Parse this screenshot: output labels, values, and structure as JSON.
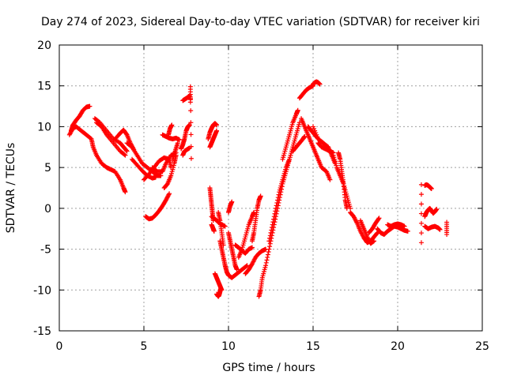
{
  "chart_data": {
    "type": "scatter",
    "title": "Day 274 of 2023, Sidereal Day-to-day VTEC variation (SDTVAR) for receiver kiri",
    "xlabel": "GPS time / hours",
    "ylabel": "SDTVAR / TECUs",
    "xlim": [
      0,
      25
    ],
    "ylim": [
      -15,
      20
    ],
    "xticks": [
      0,
      5,
      10,
      15,
      20,
      25
    ],
    "yticks": [
      -15,
      -10,
      -5,
      0,
      5,
      10,
      15,
      20
    ],
    "grid": true,
    "marker": "+",
    "series": [
      {
        "name": "SDTVAR",
        "color": "#ff0000",
        "tracks": [
          {
            "x": [
              0.7,
              0.8,
              1.0,
              1.2,
              1.4,
              1.6,
              1.8
            ],
            "y": [
              9.5,
              10.2,
              10.8,
              11.3,
              12.0,
              12.4,
              12.5
            ]
          },
          {
            "x": [
              0.6,
              0.8,
              1.0,
              1.3,
              1.6,
              1.9,
              2.0,
              2.2,
              2.5,
              2.8,
              3.0,
              3.3,
              3.6,
              3.8,
              3.9
            ],
            "y": [
              9.0,
              9.8,
              10.0,
              9.5,
              9.0,
              8.5,
              7.5,
              6.5,
              5.5,
              5.0,
              4.8,
              4.5,
              3.5,
              2.5,
              2.0
            ]
          },
          {
            "x": [
              2.1,
              2.4,
              2.8,
              3.2,
              3.6,
              3.8,
              4.0
            ],
            "y": [
              11.0,
              10.5,
              9.5,
              8.5,
              8.0,
              7.5,
              7.0
            ]
          },
          {
            "x": [
              2.2,
              2.5,
              2.8,
              3.2,
              3.6,
              3.9
            ],
            "y": [
              10.5,
              10.0,
              9.0,
              8.0,
              7.0,
              6.5
            ]
          },
          {
            "x": [
              3.3,
              3.6,
              3.8,
              4.0,
              4.2,
              4.4
            ],
            "y": [
              8.5,
              9.2,
              9.6,
              9.0,
              8.0,
              7.2
            ]
          },
          {
            "x": [
              4.0,
              4.3,
              4.6,
              4.9,
              5.2,
              5.5,
              5.8,
              6.0
            ],
            "y": [
              8.0,
              7.5,
              6.5,
              5.5,
              5.0,
              4.5,
              4.0,
              4.0
            ]
          },
          {
            "x": [
              4.3,
              4.6,
              4.9,
              5.2,
              5.5,
              5.7
            ],
            "y": [
              6.0,
              5.3,
              4.6,
              4.0,
              3.7,
              3.8
            ]
          },
          {
            "x": [
              5.0,
              5.3,
              5.6,
              5.9,
              6.2,
              6.5,
              6.6
            ],
            "y": [
              3.5,
              4.2,
              5.0,
              5.8,
              6.2,
              6.0,
              5.0
            ]
          },
          {
            "x": [
              5.5,
              5.8,
              6.1,
              6.3,
              6.6,
              6.9
            ],
            "y": [
              5.0,
              4.5,
              4.5,
              5.5,
              6.5,
              6.8
            ]
          },
          {
            "x": [
              6.2,
              6.4,
              6.6,
              6.8,
              6.9
            ],
            "y": [
              2.5,
              3.0,
              4.0,
              5.5,
              6.5
            ]
          },
          {
            "x": [
              6.7,
              6.85,
              7.0
            ],
            "y": [
              6.0,
              7.0,
              8.0
            ]
          },
          {
            "x": [
              5.1,
              5.3,
              5.5,
              5.7,
              5.9,
              6.1,
              6.3,
              6.5
            ],
            "y": [
              -1.0,
              -1.3,
              -1.2,
              -0.8,
              -0.3,
              0.3,
              1.0,
              1.8
            ]
          },
          {
            "x": [
              6.1,
              6.3,
              6.5,
              6.7,
              6.9,
              7.1
            ],
            "y": [
              9.0,
              8.8,
              8.6,
              8.5,
              8.6,
              8.4
            ]
          },
          {
            "x": [
              6.45,
              6.55,
              6.65
            ],
            "y": [
              9.0,
              9.8,
              10.2
            ]
          },
          {
            "x": [
              7.2,
              7.3,
              7.4,
              7.5,
              7.6,
              7.7
            ],
            "y": [
              7.3,
              7.8,
              8.5,
              9.5,
              10.0,
              10.2
            ]
          },
          {
            "x": [
              7.3,
              7.4,
              7.55,
              7.7
            ],
            "y": [
              6.5,
              7.0,
              7.2,
              7.4
            ]
          },
          {
            "x": [
              7.3,
              7.45,
              7.6,
              7.7
            ],
            "y": [
              13.2,
              13.4,
              13.6,
              13.8
            ]
          },
          {
            "x": [
              7.75,
              7.75,
              7.8
            ],
            "y": [
              13.0,
              14.9,
              6.1
            ]
          },
          {
            "x": [
              8.8,
              8.9,
              9.0,
              9.1,
              9.2,
              9.3
            ],
            "y": [
              8.5,
              9.3,
              9.8,
              10.2,
              10.4,
              10.2
            ]
          },
          {
            "x": [
              8.9,
              9.0,
              9.1,
              9.2,
              9.3
            ],
            "y": [
              7.5,
              8.0,
              8.5,
              9.0,
              9.5
            ]
          },
          {
            "x": [
              8.9,
              8.95,
              9.0,
              9.05,
              9.1
            ],
            "y": [
              2.5,
              1.5,
              0.5,
              -0.5,
              -1.5
            ]
          },
          {
            "x": [
              9.0,
              9.1,
              9.15
            ],
            "y": [
              -2.0,
              -2.5,
              -2.8
            ]
          },
          {
            "x": [
              9.0,
              9.2,
              9.4,
              9.6,
              9.8
            ],
            "y": [
              -1.0,
              -1.3,
              -1.7,
              -2.0,
              -2.2
            ]
          },
          {
            "x": [
              9.2,
              9.3,
              9.4,
              9.5,
              9.6
            ],
            "y": [
              -8.0,
              -8.5,
              -9.0,
              -9.5,
              -10.0
            ]
          },
          {
            "x": [
              9.3,
              9.4,
              9.45,
              9.5,
              9.55
            ],
            "y": [
              -10.5,
              -10.8,
              -10.6,
              -10.2,
              -9.8
            ]
          },
          {
            "x": [
              9.5,
              9.6,
              9.7,
              9.8,
              9.9,
              10.0,
              10.2,
              10.5,
              10.8,
              11.1
            ],
            "y": [
              -4.0,
              -5.0,
              -6.0,
              -7.0,
              -7.8,
              -8.2,
              -8.5,
              -8.0,
              -7.5,
              -7.0
            ]
          },
          {
            "x": [
              9.4,
              9.5,
              9.6,
              9.7
            ],
            "y": [
              -0.5,
              -1.5,
              -3.0,
              -4.5
            ]
          },
          {
            "x": [
              10.0,
              10.1,
              10.2,
              10.3,
              10.4,
              10.5
            ],
            "y": [
              -3.0,
              -4.0,
              -5.0,
              -6.0,
              -7.0,
              -7.5
            ]
          },
          {
            "x": [
              10.0,
              10.1,
              10.2
            ],
            "y": [
              -0.5,
              0.3,
              0.8
            ]
          },
          {
            "x": [
              10.4,
              10.6,
              10.8,
              11.0,
              11.2,
              11.4
            ],
            "y": [
              -4.5,
              -4.8,
              -5.2,
              -5.5,
              -5.0,
              -4.8
            ]
          },
          {
            "x": [
              10.6,
              10.8,
              11.0,
              11.2,
              11.4,
              11.5
            ],
            "y": [
              -6.0,
              -5.0,
              -3.5,
              -2.0,
              -1.0,
              -0.5
            ]
          },
          {
            "x": [
              11.0,
              11.2,
              11.4,
              11.6,
              11.8,
              12.0,
              12.2
            ],
            "y": [
              -8.0,
              -7.5,
              -6.8,
              -6.0,
              -5.5,
              -5.2,
              -5.0
            ]
          },
          {
            "x": [
              11.4,
              11.5,
              11.6,
              11.7,
              11.8,
              11.9
            ],
            "y": [
              -4.0,
              -3.0,
              -1.5,
              0.0,
              1.0,
              1.5
            ]
          },
          {
            "x": [
              11.8,
              11.9,
              12.0,
              12.2,
              12.4,
              12.6,
              12.8,
              13.0,
              13.2,
              13.4,
              13.6,
              13.8,
              14.0,
              14.2
            ],
            "y": [
              -10.8,
              -10.0,
              -8.5,
              -7.0,
              -5.0,
              -3.0,
              -1.0,
              1.0,
              3.0,
              4.5,
              6.0,
              7.5,
              9.0,
              10.5
            ]
          },
          {
            "x": [
              12.4,
              12.6,
              12.8,
              13.0,
              13.2,
              13.4,
              13.6
            ],
            "y": [
              -4.0,
              -2.0,
              0.0,
              2.0,
              3.5,
              5.0,
              6.0
            ]
          },
          {
            "x": [
              13.2,
              13.4,
              13.6,
              13.8,
              14.0,
              14.1
            ],
            "y": [
              6.0,
              7.5,
              9.0,
              10.5,
              11.5,
              12.0
            ]
          },
          {
            "x": [
              13.8,
              14.0,
              14.2,
              14.4,
              14.5
            ],
            "y": [
              7.0,
              7.5,
              8.0,
              8.5,
              8.8
            ]
          },
          {
            "x": [
              14.2,
              14.4,
              14.6,
              14.8,
              15.0
            ],
            "y": [
              13.5,
              14.0,
              14.5,
              14.8,
              15.0
            ]
          },
          {
            "x": [
              15.0,
              15.1,
              15.2,
              15.3,
              15.4
            ],
            "y": [
              15.2,
              15.4,
              15.5,
              15.4,
              15.2
            ]
          },
          {
            "x": [
              14.3,
              14.5,
              14.7,
              14.9,
              15.1,
              15.3,
              15.5,
              15.8,
              16.0
            ],
            "y": [
              11.0,
              10.0,
              9.0,
              8.0,
              7.0,
              6.0,
              5.0,
              4.5,
              3.5
            ]
          },
          {
            "x": [
              14.7,
              14.9,
              15.1,
              15.3,
              15.6,
              15.8
            ],
            "y": [
              10.0,
              9.5,
              9.0,
              8.5,
              8.0,
              7.5
            ]
          },
          {
            "x": [
              15.0,
              15.3,
              15.6,
              15.9,
              16.1,
              16.3
            ],
            "y": [
              10.0,
              8.5,
              8.0,
              7.5,
              6.5,
              5.5
            ]
          },
          {
            "x": [
              15.3,
              15.5,
              15.8,
              16.0,
              16.2
            ],
            "y": [
              8.0,
              7.5,
              7.2,
              7.0,
              6.8
            ]
          },
          {
            "x": [
              16.2,
              16.4,
              16.6,
              16.8,
              17.0,
              17.2
            ],
            "y": [
              6.5,
              5.0,
              4.0,
              3.0,
              1.5,
              0.0
            ]
          },
          {
            "x": [
              16.5,
              16.6,
              16.7,
              16.8,
              16.9,
              17.0
            ],
            "y": [
              6.8,
              6.0,
              4.5,
              3.0,
              1.0,
              0.0
            ]
          },
          {
            "x": [
              17.2,
              17.4,
              17.6,
              17.8,
              18.0,
              18.2,
              18.4,
              18.6,
              18.8
            ],
            "y": [
              -0.5,
              -1.0,
              -1.8,
              -2.8,
              -3.6,
              -4.2,
              -4.0,
              -3.5,
              -3.0
            ]
          },
          {
            "x": [
              17.8,
              18.0,
              18.2,
              18.4,
              18.6
            ],
            "y": [
              -1.5,
              -2.5,
              -3.5,
              -4.3,
              -4.0
            ]
          },
          {
            "x": [
              18.3,
              18.5,
              18.7,
              18.9
            ],
            "y": [
              -3.0,
              -2.5,
              -1.8,
              -1.2
            ]
          },
          {
            "x": [
              18.8,
              19.0,
              19.2,
              19.4,
              19.6,
              19.8,
              20.0,
              20.2,
              20.4,
              20.6
            ],
            "y": [
              -2.5,
              -3.0,
              -3.2,
              -2.8,
              -2.5,
              -2.2,
              -2.3,
              -2.5,
              -2.7,
              -2.8
            ]
          },
          {
            "x": [
              19.4,
              19.6,
              19.8,
              20.0,
              20.2,
              20.4
            ],
            "y": [
              -2.0,
              -2.2,
              -2.0,
              -1.9,
              -2.0,
              -2.2
            ]
          },
          {
            "x": [
              21.4,
              21.4
            ],
            "y": [
              2.9,
              -4.2
            ]
          },
          {
            "x": [
              21.6,
              21.7,
              21.8,
              21.9,
              22.0
            ],
            "y": [
              2.8,
              2.9,
              2.8,
              2.6,
              2.4
            ]
          },
          {
            "x": [
              21.6,
              21.7,
              21.8,
              21.9,
              22.0,
              22.1,
              22.2,
              22.3
            ],
            "y": [
              -1.0,
              -0.5,
              -0.2,
              0.0,
              -0.3,
              -0.6,
              -0.4,
              -0.1
            ]
          },
          {
            "x": [
              21.6,
              21.8,
              22.0,
              22.2,
              22.4,
              22.5
            ],
            "y": [
              -2.2,
              -2.5,
              -2.3,
              -2.2,
              -2.4,
              -2.6
            ]
          },
          {
            "x": [
              22.9,
              22.9
            ],
            "y": [
              -1.7,
              -3.2
            ]
          }
        ]
      }
    ]
  }
}
